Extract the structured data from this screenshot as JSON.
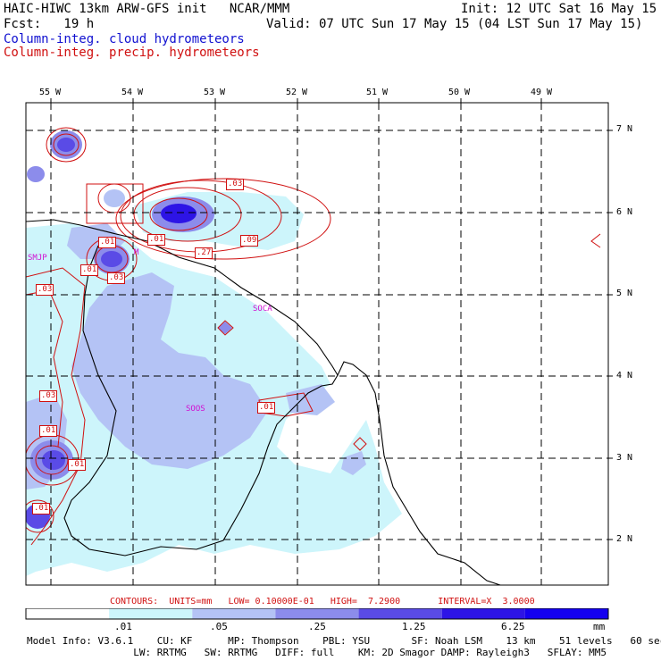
{
  "header": {
    "model_line": "HAIC-HIWC 13km ARW-GFS init   NCAR/MMM",
    "init_line": "Init: 12 UTC Sat 16 May 15",
    "fcst_line": "Fcst:   19 h",
    "valid_line": "Valid: 07 UTC Sun 17 May 15 (04 LST Sun 17 May 15)",
    "field1": "Column-integ. cloud hydrometeors",
    "field2": "Column-integ. precip. hydrometeors"
  },
  "map": {
    "lon_labels": [
      "55 W",
      "54 W",
      "53 W",
      "52 W",
      "51 W",
      "50 W",
      "49 W"
    ],
    "lat_labels": [
      "7 N",
      "6 N",
      "5 N",
      "4 N",
      "3 N",
      "2 N"
    ],
    "stations": [
      "SMJP",
      "SOCA",
      "SOOS",
      "M"
    ],
    "contour_labels": [
      ".03",
      ".01",
      ".01",
      ".09",
      ".27",
      ".01",
      ".03",
      ".03",
      ".01",
      ".03",
      ".01",
      ".01",
      ".01"
    ]
  },
  "colorbar": {
    "labels": [
      ".01",
      ".05",
      ".25",
      "1.25",
      "6.25"
    ],
    "unit": "mm",
    "colors": [
      "#ffffff",
      "#cdf5fb",
      "#b4c3f5",
      "#8c8ceb",
      "#5a4be6",
      "#2d14e6",
      "#1400f0"
    ]
  },
  "contours_line": "CONTOURS:  UNITS=mm   LOW= 0.10000E-01   HIGH=  7.2900       INTERVAL=X  3.0000",
  "model_info": {
    "line1": "Model Info: V3.6.1    CU: KF      MP: Thompson    PBL: YSU       SF: Noah LSM    13 km    51 levels   60 sec",
    "line2": "                  LW: RRTMG   SW: RRTMG   DIFF: full    KM: 2D Smagor DAMP: Rayleigh3   SFLAY: MM5"
  }
}
